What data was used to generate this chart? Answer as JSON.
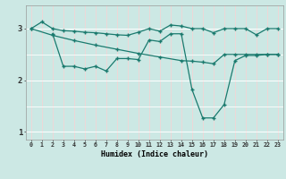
{
  "xlabel": "Humidex (Indice chaleur)",
  "xlim": [
    -0.5,
    23.5
  ],
  "ylim": [
    0.85,
    3.45
  ],
  "yticks": [
    1,
    2,
    3
  ],
  "xticks": [
    0,
    1,
    2,
    3,
    4,
    5,
    6,
    7,
    8,
    9,
    10,
    11,
    12,
    13,
    14,
    15,
    16,
    17,
    18,
    19,
    20,
    21,
    22,
    23
  ],
  "bg_color": "#cce8e4",
  "line_color": "#1a7a6e",
  "grid_color": "#ffffff",
  "series1_x": [
    0,
    1,
    2,
    3,
    4,
    5,
    6,
    7,
    8,
    9,
    10,
    11,
    12,
    13,
    14,
    15,
    16,
    17,
    18,
    19,
    20,
    21,
    22,
    23
  ],
  "series1_y": [
    3.0,
    3.13,
    3.0,
    2.96,
    2.95,
    2.93,
    2.92,
    2.9,
    2.88,
    2.87,
    2.93,
    3.0,
    2.95,
    3.07,
    3.05,
    3.0,
    3.0,
    2.92,
    3.0,
    3.0,
    3.0,
    2.88,
    3.0,
    3.0
  ],
  "series2_x": [
    2,
    3,
    4,
    5,
    6,
    7,
    8,
    9,
    10,
    11,
    12,
    13,
    14,
    15,
    16,
    17,
    18,
    19,
    20,
    21,
    22,
    23
  ],
  "series2_y": [
    2.9,
    2.27,
    2.27,
    2.22,
    2.27,
    2.18,
    2.42,
    2.42,
    2.4,
    2.78,
    2.75,
    2.9,
    2.9,
    1.82,
    1.27,
    1.27,
    1.53,
    2.38,
    2.48,
    2.48,
    2.5,
    2.5
  ],
  "series3_x": [
    0,
    2,
    4,
    6,
    8,
    10,
    12,
    14,
    15,
    16,
    17,
    18,
    19,
    20,
    21,
    22,
    23
  ],
  "series3_y": [
    3.0,
    2.87,
    2.77,
    2.68,
    2.6,
    2.52,
    2.45,
    2.38,
    2.37,
    2.35,
    2.32,
    2.5,
    2.5,
    2.5,
    2.5,
    2.5,
    2.5
  ]
}
